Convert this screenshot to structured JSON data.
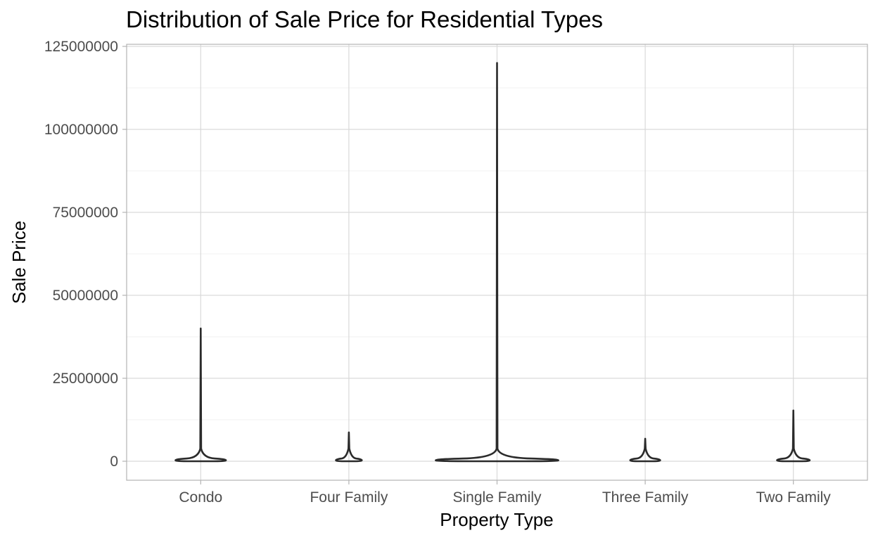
{
  "chart_data": {
    "type": "violin",
    "title": "Distribution of Sale Price for Residential Types",
    "xlabel": "Property Type",
    "ylabel": "Sale Price",
    "categories": [
      "Condo",
      "Four Family",
      "Single Family",
      "Three Family",
      "Two Family"
    ],
    "y_ticks": [
      0,
      25000000,
      50000000,
      75000000,
      100000000,
      125000000
    ],
    "y_tick_labels": [
      "0",
      "25000000",
      "50000000",
      "75000000",
      "100000000",
      "125000000"
    ],
    "ylim": [
      -6000000,
      126000000
    ],
    "grid": true,
    "violins": [
      {
        "category": "Condo",
        "max": 40000000,
        "bulk_price": 300000,
        "relative_width": 0.37
      },
      {
        "category": "Four Family",
        "max": 8700000,
        "bulk_price": 300000,
        "relative_width": 0.19
      },
      {
        "category": "Single Family",
        "max": 120000000,
        "bulk_price": 300000,
        "relative_width": 0.9
      },
      {
        "category": "Three Family",
        "max": 6800000,
        "bulk_price": 300000,
        "relative_width": 0.22
      },
      {
        "category": "Two Family",
        "max": 15300000,
        "bulk_price": 300000,
        "relative_width": 0.24
      }
    ],
    "colors": {
      "outline": "#2b2b2b",
      "grid": "#d9d9d9",
      "background": "#ffffff"
    }
  }
}
